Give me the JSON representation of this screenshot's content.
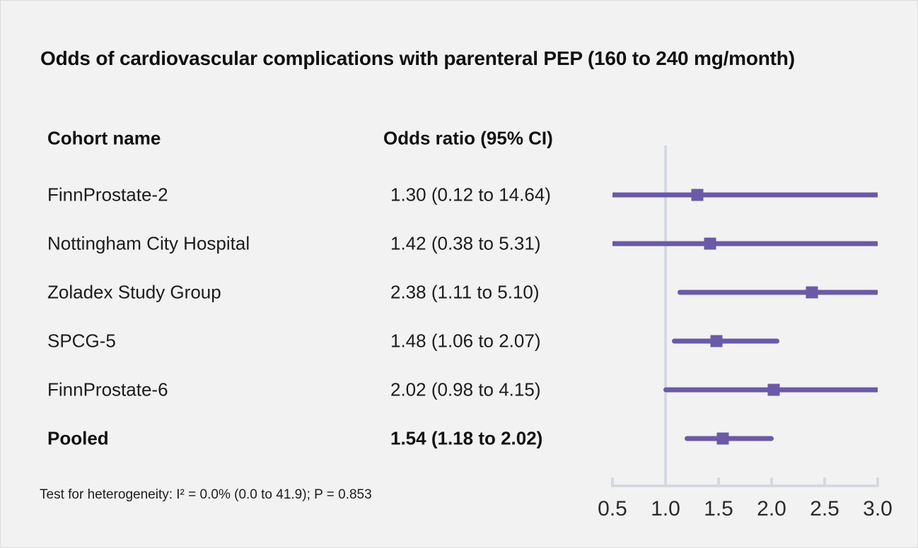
{
  "title": "Odds of cardiovascular complications with parenteral PEP (160 to 240 mg/month)",
  "columns": {
    "cohort": "Cohort name",
    "odds_ratio": "Odds ratio (95% CI)"
  },
  "footnote": "Test for heterogeneity: I² = 0.0% (0.0 to 41.9); P = 0.853",
  "colors": {
    "marker": "#6b5aa6",
    "axis": "#d5d9e1",
    "background": "#f2f2f2",
    "text": "#1c1c1c"
  },
  "chart_data": {
    "type": "forest",
    "title": "Odds of cardiovascular complications with parenteral PEP (160 to 240 mg/month)",
    "xlim": [
      0.5,
      3.0
    ],
    "x_ticks": [
      "0.5",
      "1.0",
      "1.5",
      "2.0",
      "2.5",
      "3.0"
    ],
    "x_tick_values": [
      0.5,
      1.0,
      1.5,
      2.0,
      2.5,
      3.0
    ],
    "reference_line": 1.0,
    "grid": false,
    "legend": false,
    "rows": [
      {
        "label": "FinnProstate-2",
        "or_text": "1.30 (0.12 to 14.64)",
        "estimate": 1.3,
        "ci_low": 0.12,
        "ci_high": 14.64,
        "bold": false
      },
      {
        "label": "Nottingham City Hospital",
        "or_text": "1.42 (0.38 to 5.31)",
        "estimate": 1.42,
        "ci_low": 0.38,
        "ci_high": 5.31,
        "bold": false
      },
      {
        "label": "Zoladex Study Group",
        "or_text": "2.38 (1.11 to 5.10)",
        "estimate": 2.38,
        "ci_low": 1.11,
        "ci_high": 5.1,
        "bold": false
      },
      {
        "label": "SPCG-5",
        "or_text": "1.48 (1.06 to 2.07)",
        "estimate": 1.48,
        "ci_low": 1.06,
        "ci_high": 2.07,
        "bold": false
      },
      {
        "label": "FinnProstate-6",
        "or_text": "2.02 (0.98 to 4.15)",
        "estimate": 2.02,
        "ci_low": 0.98,
        "ci_high": 4.15,
        "bold": false
      },
      {
        "label": "Pooled",
        "or_text": "1.54 (1.18 to 2.02)",
        "estimate": 1.54,
        "ci_low": 1.18,
        "ci_high": 2.02,
        "bold": true
      }
    ]
  }
}
